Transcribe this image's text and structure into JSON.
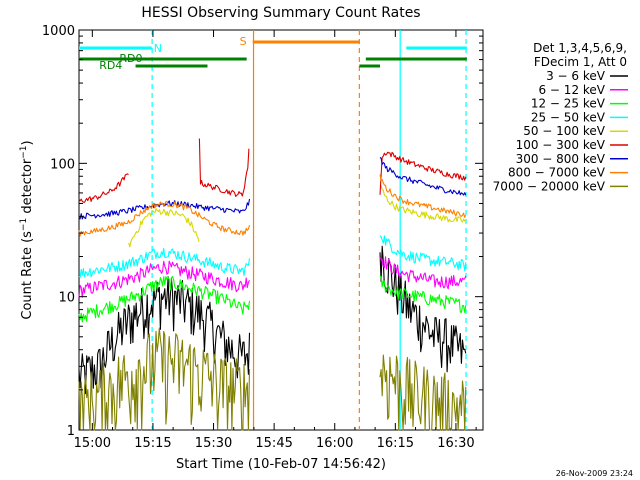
{
  "chart_data": {
    "type": "line",
    "title": "HESSI Observing Summary Count Rates",
    "xlabel": "Start Time (10-Feb-07 14:56:42)",
    "ylabel": "Count Rate (s⁻¹ detector⁻¹)",
    "ylabel_parts": [
      "Count Rate (s",
      "−1",
      " detector",
      "−1",
      ")"
    ],
    "footer": "26-Nov-2009 23:24",
    "x_unit": "minutes since 14:56:42",
    "xlim": [
      0,
      100
    ],
    "ylim": [
      1,
      1000
    ],
    "yscale": "log",
    "x_ticks": [
      {
        "label": "15:00",
        "x": 3.3
      },
      {
        "label": "15:15",
        "x": 18.3
      },
      {
        "label": "15:30",
        "x": 33.3
      },
      {
        "label": "15:45",
        "x": 48.3
      },
      {
        "label": "16:00",
        "x": 63.3
      },
      {
        "label": "16:15",
        "x": 78.3
      },
      {
        "label": "16:30",
        "x": 93.3
      }
    ],
    "y_ticks": [
      {
        "label": "1",
        "y": 1
      },
      {
        "label": "10",
        "y": 10
      },
      {
        "label": "100",
        "y": 100
      },
      {
        "label": "1000",
        "y": 1000
      }
    ],
    "legend": {
      "placement": "right",
      "header": [
        "Det 1,3,4,5,6,9,",
        "FDecim 1, Att 0"
      ],
      "entries": [
        {
          "label": "3 − 6 keV",
          "color": "#000000"
        },
        {
          "label": "6 − 12 keV",
          "color": "#ff00ff"
        },
        {
          "label": "12 − 25 keV",
          "color": "#00ff00"
        },
        {
          "label": "25 − 50 keV",
          "color": "#00ffff"
        },
        {
          "label": "50 − 100 keV",
          "color": "#d8d800"
        },
        {
          "label": "100 − 300 keV",
          "color": "#dd0000"
        },
        {
          "label": "300 − 800 keV",
          "color": "#0000cc"
        },
        {
          "label": "800 − 7000 keV",
          "color": "#ff8000"
        },
        {
          "label": "7000 − 20000 keV",
          "color": "#808000"
        }
      ]
    },
    "series": [
      {
        "name": "3 - 6 keV",
        "color": "#000000",
        "noise": 0.45,
        "segments": [
          {
            "x": [
              0,
              5,
              8,
              11,
              14,
              17,
              20,
              23,
              26,
              29,
              32,
              35,
              38,
              40.5,
              42.3
            ],
            "y": [
              2.5,
              3,
              4.5,
              6,
              7.5,
              9,
              10,
              10,
              9,
              8,
              6.5,
              5,
              4,
              3.5,
              4
            ]
          },
          {
            "x": [
              74.5,
              76,
              78,
              80,
              82,
              84,
              86,
              88,
              90,
              92,
              94,
              96
            ],
            "y": [
              25,
              17,
              13,
              10,
              8,
              7,
              6,
              5,
              5,
              4.5,
              4,
              3.5
            ]
          }
        ]
      },
      {
        "name": "6 - 12 keV",
        "color": "#ff00ff",
        "noise": 0.12,
        "segments": [
          {
            "x": [
              0,
              5,
              10,
              15,
              18,
              21,
              24,
              28,
              32,
              36,
              40.5,
              42.3
            ],
            "y": [
              11,
              12,
              13,
              14.5,
              16,
              17,
              16,
              15,
              14,
              13,
              12,
              14
            ]
          },
          {
            "x": [
              74.5,
              76,
              78,
              80,
              84,
              88,
              92,
              96
            ],
            "y": [
              20,
              18,
              16,
              15,
              14,
              13,
              13,
              13
            ]
          }
        ]
      },
      {
        "name": "12 - 25 keV",
        "color": "#00ff00",
        "noise": 0.12,
        "segments": [
          {
            "x": [
              0,
              5,
              10,
              15,
              18,
              21,
              24,
              28,
              32,
              36,
              40.5,
              42.3
            ],
            "y": [
              7,
              8,
              9,
              10.5,
              12,
              13,
              12.5,
              11.5,
              10.5,
              9.5,
              8,
              9
            ]
          },
          {
            "x": [
              74.5,
              76,
              78,
              80,
              84,
              88,
              92,
              96
            ],
            "y": [
              13,
              12,
              11,
              10.5,
              10,
              9.5,
              9,
              8.5
            ]
          }
        ]
      },
      {
        "name": "25 - 50 keV",
        "color": "#00ffff",
        "noise": 0.1,
        "segments": [
          {
            "x": [
              0,
              5,
              10,
              15,
              18,
              21,
              24,
              28,
              32,
              36,
              40.5,
              42.3
            ],
            "y": [
              15,
              16,
              17,
              19,
              21,
              22,
              21,
              19.5,
              18,
              16.5,
              15.5,
              18
            ]
          },
          {
            "x": [
              74.5,
              76,
              78,
              80,
              84,
              88,
              92,
              96
            ],
            "y": [
              30,
              26,
              23,
              21,
              19.5,
              18.5,
              18,
              17
            ]
          }
        ]
      },
      {
        "name": "50 - 100 keV",
        "color": "#d8d800",
        "noise": 0.06,
        "segments": [
          {
            "x": [
              12.3,
              14,
              16,
              18,
              20,
              22,
              24,
              26,
              28,
              29.8
            ],
            "y": [
              24,
              30,
              38,
              43,
              44,
              43,
              42,
              40,
              34,
              26
            ]
          },
          {
            "x": [
              74.5,
              76,
              78,
              80,
              84,
              88,
              92,
              96
            ],
            "y": [
              68,
              55,
              48,
              45,
              42,
              40,
              38,
              37
            ]
          }
        ]
      },
      {
        "name": "100 - 300 keV",
        "color": "#dd0000",
        "noise": 0.05,
        "segments": [
          {
            "x": [
              0,
              4,
              8,
              10,
              12.3
            ],
            "y": [
              52,
              55,
              62,
              70,
              84
            ]
          },
          {
            "x": [
              29.8,
              32,
              35,
              38,
              40.5,
              41.8,
              42.3
            ],
            "y": [
              72,
              68,
              64,
              60,
              58,
              95,
              160
            ]
          },
          {
            "x": [
              74.5,
              75,
              76,
              78,
              80,
              84,
              88,
              92,
              96
            ],
            "y": [
              60,
              110,
              122,
              114,
              106,
              96,
              88,
              82,
              78
            ]
          }
        ]
      },
      {
        "name": "300 - 800 keV",
        "color": "#0000cc",
        "noise": 0.05,
        "segments": [
          {
            "x": [
              0,
              4,
              8,
              12,
              15,
              18,
              21,
              24,
              27,
              30,
              33,
              36,
              40.5,
              42.3
            ],
            "y": [
              40,
              41,
              42,
              44,
              46,
              48,
              50,
              50,
              49,
              47,
              46,
              45,
              43,
              52
            ]
          },
          {
            "x": [
              74.5,
              76,
              78,
              80,
              84,
              88,
              92,
              96
            ],
            "y": [
              110,
              92,
              85,
              78,
              72,
              66,
              62,
              58
            ]
          }
        ]
      },
      {
        "name": "800 - 7000 keV",
        "color": "#ff8000",
        "noise": 0.05,
        "segments": [
          {
            "x": [
              0,
              4,
              8,
              12,
              15,
              18,
              21,
              24,
              27,
              30,
              33,
              36,
              40.5,
              42.3
            ],
            "y": [
              30,
              31,
              33,
              36,
              42,
              48,
              50,
              49,
              46,
              40,
              35,
              32,
              30,
              33
            ]
          },
          {
            "x": [
              74.5,
              76,
              78,
              80,
              84,
              88,
              92,
              96
            ],
            "y": [
              80,
              65,
              58,
              53,
              49,
              46,
              43,
              41
            ]
          }
        ]
      },
      {
        "name": "7000 - 20000 keV",
        "color": "#808000",
        "noise": 0.7,
        "segments": [
          {
            "x": [
              0,
              5,
              10,
              15,
              20,
              25,
              30,
              35,
              40.5,
              42.3
            ],
            "y": [
              1.5,
              1.8,
              2.3,
              3,
              3.5,
              3.2,
              2.8,
              2.2,
              2,
              2.2
            ]
          },
          {
            "x": [
              74.5,
              78,
              82,
              86,
              90,
              94,
              96
            ],
            "y": [
              3,
              2.5,
              2,
              1.8,
              1.6,
              1.5,
              1.5
            ]
          }
        ]
      }
    ],
    "flags": [
      {
        "label": "N",
        "color": "#00ffff",
        "label_color": "#00ffff",
        "segments": [
          [
            0,
            18
          ],
          [
            81,
            96
          ]
        ]
      },
      {
        "label": "S",
        "color": "#ff8000",
        "label_color": "#ff8000",
        "segments": [
          [
            43,
            69.4
          ]
        ]
      },
      {
        "label": "RD0",
        "color": "#008000",
        "label_color": "#008000",
        "segments": [
          [
            0,
            41.5
          ],
          [
            71,
            96
          ]
        ]
      },
      {
        "label": "RD4",
        "color": "#008000",
        "label_color": "#008000",
        "segments": [
          [
            14,
            31.8
          ],
          [
            69.4,
            74.5
          ]
        ]
      }
    ],
    "markers": [
      {
        "x": 18.1,
        "color": "#00ffff",
        "style": "dashed"
      },
      {
        "x": 43.2,
        "color": "#ff8000",
        "style": "solid"
      },
      {
        "x": 69.4,
        "color": "#ff8000",
        "style": "dashed"
      },
      {
        "x": 79.5,
        "color": "#00ffff",
        "style": "solid"
      },
      {
        "x": 95.8,
        "color": "#00ffff",
        "style": "dashed"
      }
    ]
  }
}
